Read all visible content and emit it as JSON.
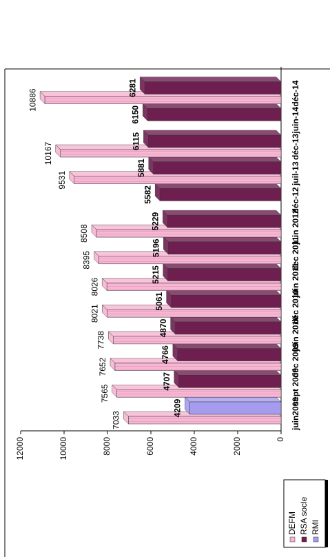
{
  "chart_data": {
    "type": "bar",
    "categories": [
      "juin2009",
      "sept 2009",
      "déc 2009",
      "juin 2010",
      "déc 2010",
      "juin 2011",
      "dec 2011",
      "juin 2012",
      "déc-12",
      "juil-13",
      "déc-13",
      "juin-14",
      "déc-14"
    ],
    "series": [
      {
        "name": "DEFM",
        "color": "#f7b6d2",
        "values": [
          7033,
          7565,
          7652,
          7738,
          8021,
          8026,
          8395,
          8508,
          null,
          9531,
          10167,
          null,
          10886
        ]
      },
      {
        "name": "RSA socle",
        "color": "#6e1f4f",
        "values": [
          null,
          4707,
          4766,
          4870,
          5061,
          5215,
          5196,
          5229,
          5582,
          5881,
          6115,
          6150,
          6281
        ]
      },
      {
        "name": "RMI",
        "color": "#a59cf0",
        "values": [
          4209,
          null,
          null,
          null,
          null,
          null,
          null,
          null,
          null,
          null,
          null,
          null,
          null
        ]
      }
    ],
    "ylim": [
      0,
      12000
    ],
    "yticks": [
      0,
      2000,
      4000,
      6000,
      8000,
      10000,
      12000
    ]
  }
}
